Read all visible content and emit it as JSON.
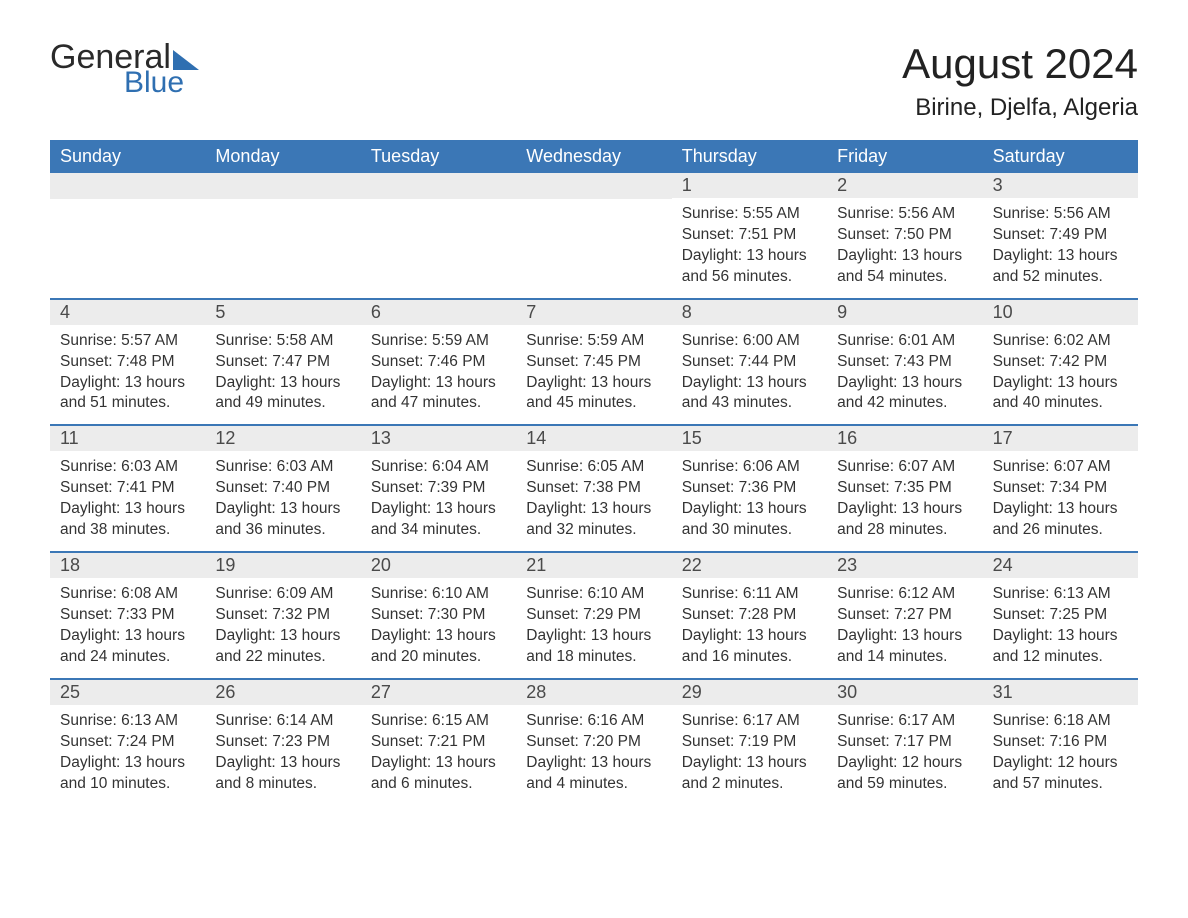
{
  "logo": {
    "word1": "General",
    "word2": "Blue",
    "accent_color": "#2f6fb1"
  },
  "header": {
    "month_title": "August 2024",
    "location": "Birine, Djelfa, Algeria"
  },
  "calendar": {
    "weekdays": [
      "Sunday",
      "Monday",
      "Tuesday",
      "Wednesday",
      "Thursday",
      "Friday",
      "Saturday"
    ],
    "header_bg": "#3b77b6",
    "header_fg": "#ffffff",
    "daybar_bg": "#ececec",
    "week_divider_color": "#3b77b6",
    "labels": {
      "sunrise_prefix": "Sunrise: ",
      "sunset_prefix": "Sunset: ",
      "daylight_prefix": "Daylight: "
    },
    "weeks": [
      [
        null,
        null,
        null,
        null,
        {
          "day": "1",
          "sunrise": "5:55 AM",
          "sunset": "7:51 PM",
          "daylight": "13 hours and 56 minutes."
        },
        {
          "day": "2",
          "sunrise": "5:56 AM",
          "sunset": "7:50 PM",
          "daylight": "13 hours and 54 minutes."
        },
        {
          "day": "3",
          "sunrise": "5:56 AM",
          "sunset": "7:49 PM",
          "daylight": "13 hours and 52 minutes."
        }
      ],
      [
        {
          "day": "4",
          "sunrise": "5:57 AM",
          "sunset": "7:48 PM",
          "daylight": "13 hours and 51 minutes."
        },
        {
          "day": "5",
          "sunrise": "5:58 AM",
          "sunset": "7:47 PM",
          "daylight": "13 hours and 49 minutes."
        },
        {
          "day": "6",
          "sunrise": "5:59 AM",
          "sunset": "7:46 PM",
          "daylight": "13 hours and 47 minutes."
        },
        {
          "day": "7",
          "sunrise": "5:59 AM",
          "sunset": "7:45 PM",
          "daylight": "13 hours and 45 minutes."
        },
        {
          "day": "8",
          "sunrise": "6:00 AM",
          "sunset": "7:44 PM",
          "daylight": "13 hours and 43 minutes."
        },
        {
          "day": "9",
          "sunrise": "6:01 AM",
          "sunset": "7:43 PM",
          "daylight": "13 hours and 42 minutes."
        },
        {
          "day": "10",
          "sunrise": "6:02 AM",
          "sunset": "7:42 PM",
          "daylight": "13 hours and 40 minutes."
        }
      ],
      [
        {
          "day": "11",
          "sunrise": "6:03 AM",
          "sunset": "7:41 PM",
          "daylight": "13 hours and 38 minutes."
        },
        {
          "day": "12",
          "sunrise": "6:03 AM",
          "sunset": "7:40 PM",
          "daylight": "13 hours and 36 minutes."
        },
        {
          "day": "13",
          "sunrise": "6:04 AM",
          "sunset": "7:39 PM",
          "daylight": "13 hours and 34 minutes."
        },
        {
          "day": "14",
          "sunrise": "6:05 AM",
          "sunset": "7:38 PM",
          "daylight": "13 hours and 32 minutes."
        },
        {
          "day": "15",
          "sunrise": "6:06 AM",
          "sunset": "7:36 PM",
          "daylight": "13 hours and 30 minutes."
        },
        {
          "day": "16",
          "sunrise": "6:07 AM",
          "sunset": "7:35 PM",
          "daylight": "13 hours and 28 minutes."
        },
        {
          "day": "17",
          "sunrise": "6:07 AM",
          "sunset": "7:34 PM",
          "daylight": "13 hours and 26 minutes."
        }
      ],
      [
        {
          "day": "18",
          "sunrise": "6:08 AM",
          "sunset": "7:33 PM",
          "daylight": "13 hours and 24 minutes."
        },
        {
          "day": "19",
          "sunrise": "6:09 AM",
          "sunset": "7:32 PM",
          "daylight": "13 hours and 22 minutes."
        },
        {
          "day": "20",
          "sunrise": "6:10 AM",
          "sunset": "7:30 PM",
          "daylight": "13 hours and 20 minutes."
        },
        {
          "day": "21",
          "sunrise": "6:10 AM",
          "sunset": "7:29 PM",
          "daylight": "13 hours and 18 minutes."
        },
        {
          "day": "22",
          "sunrise": "6:11 AM",
          "sunset": "7:28 PM",
          "daylight": "13 hours and 16 minutes."
        },
        {
          "day": "23",
          "sunrise": "6:12 AM",
          "sunset": "7:27 PM",
          "daylight": "13 hours and 14 minutes."
        },
        {
          "day": "24",
          "sunrise": "6:13 AM",
          "sunset": "7:25 PM",
          "daylight": "13 hours and 12 minutes."
        }
      ],
      [
        {
          "day": "25",
          "sunrise": "6:13 AM",
          "sunset": "7:24 PM",
          "daylight": "13 hours and 10 minutes."
        },
        {
          "day": "26",
          "sunrise": "6:14 AM",
          "sunset": "7:23 PM",
          "daylight": "13 hours and 8 minutes."
        },
        {
          "day": "27",
          "sunrise": "6:15 AM",
          "sunset": "7:21 PM",
          "daylight": "13 hours and 6 minutes."
        },
        {
          "day": "28",
          "sunrise": "6:16 AM",
          "sunset": "7:20 PM",
          "daylight": "13 hours and 4 minutes."
        },
        {
          "day": "29",
          "sunrise": "6:17 AM",
          "sunset": "7:19 PM",
          "daylight": "13 hours and 2 minutes."
        },
        {
          "day": "30",
          "sunrise": "6:17 AM",
          "sunset": "7:17 PM",
          "daylight": "12 hours and 59 minutes."
        },
        {
          "day": "31",
          "sunrise": "6:18 AM",
          "sunset": "7:16 PM",
          "daylight": "12 hours and 57 minutes."
        }
      ]
    ]
  }
}
